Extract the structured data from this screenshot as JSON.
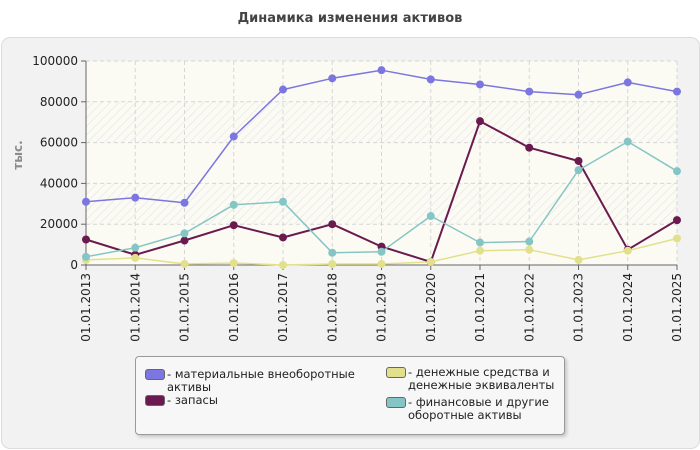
{
  "chart_data": {
    "type": "line",
    "title": "Динамика изменения активов",
    "ylabel": "тыс.",
    "xlabel": "",
    "categories": [
      "01.01.2013",
      "01.01.2014",
      "01.01.2015",
      "01.01.2016",
      "01.01.2017",
      "01.01.2018",
      "01.01.2019",
      "01.01.2020",
      "01.01.2021",
      "01.01.2022",
      "01.01.2023",
      "01.01.2024",
      "01.01.2025"
    ],
    "ylim": [
      0,
      100000
    ],
    "yticks": [
      0,
      20000,
      40000,
      60000,
      80000,
      100000
    ],
    "ytick_labels": [
      "0",
      "20000",
      "40000",
      "60000",
      "80000",
      "100000"
    ],
    "grid": true,
    "legend_position": "bottom",
    "series": [
      {
        "name": "материальные внеоборотные активы",
        "color": "#7b76e0",
        "values": [
          31000,
          33000,
          30500,
          63000,
          86000,
          91500,
          95500,
          91000,
          88500,
          85000,
          83500,
          89500,
          85000
        ]
      },
      {
        "name": "запасы",
        "color": "#6b1a4f",
        "values": [
          12500,
          5000,
          12000,
          19500,
          13500,
          20000,
          9000,
          1500,
          70500,
          57500,
          51000,
          7500,
          22000
        ]
      },
      {
        "name": "денежные средства и денежные эквиваленты",
        "color": "#e2e08c",
        "values": [
          2500,
          3500,
          500,
          1000,
          0,
          500,
          500,
          1500,
          7000,
          7500,
          2500,
          7000,
          13000
        ]
      },
      {
        "name": "финансовые и другие оборотные активы",
        "color": "#86c5c5",
        "values": [
          4000,
          8500,
          15500,
          29500,
          31000,
          6000,
          6500,
          24000,
          11000,
          11500,
          46500,
          60500,
          46000
        ]
      }
    ]
  }
}
